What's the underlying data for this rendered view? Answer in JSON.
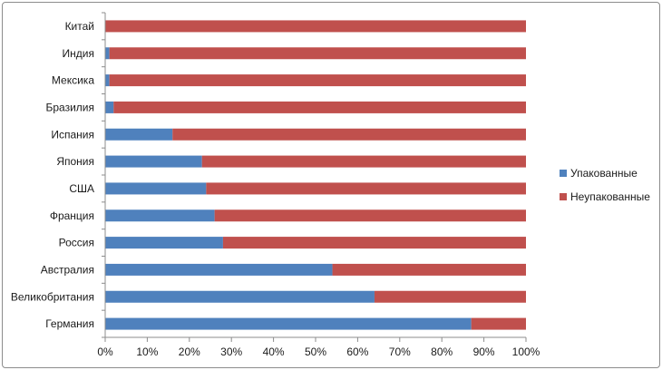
{
  "chart_data": {
    "type": "bar",
    "orientation": "horizontal",
    "stacked": "percent",
    "title": "",
    "xlabel": "",
    "ylabel": "",
    "xlim": [
      0,
      100
    ],
    "x_ticks": [
      "0%",
      "10%",
      "20%",
      "30%",
      "40%",
      "50%",
      "60%",
      "70%",
      "80%",
      "90%",
      "100%"
    ],
    "grid": false,
    "legend_position": "right",
    "categories": [
      "Китай",
      "Индия",
      "Мексика",
      "Бразилия",
      "Испания",
      "Япония",
      "США",
      "Франция",
      "Россия",
      "Австралия",
      "Великобритания",
      "Германия"
    ],
    "series": [
      {
        "name": "Упакованные",
        "color": "#4f81bd",
        "values": [
          0,
          1,
          1,
          2,
          16,
          23,
          24,
          26,
          28,
          54,
          64,
          87
        ]
      },
      {
        "name": "Неупакованные",
        "color": "#c0504d",
        "values": [
          100,
          99,
          99,
          98,
          84,
          77,
          76,
          74,
          72,
          46,
          36,
          13
        ]
      }
    ]
  }
}
